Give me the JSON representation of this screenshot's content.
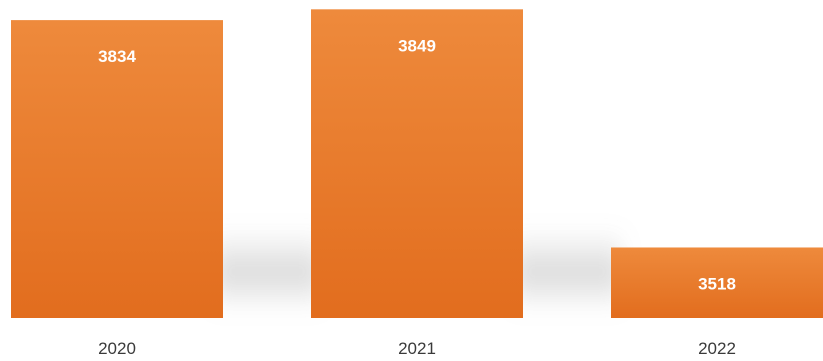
{
  "chart_data": {
    "type": "bar",
    "categories": [
      "2020",
      "2021",
      "2022"
    ],
    "values": [
      3834,
      3849,
      3518
    ],
    "data_labels": [
      "3834",
      "3849",
      "3518"
    ],
    "title": "",
    "xlabel": "",
    "ylabel": "",
    "ylim": [
      3420,
      3855
    ],
    "grid": false,
    "legend": "none",
    "colors": {
      "bar_top": "#ee8a3c",
      "bar_bottom": "#e26d1e",
      "shadow": "#9a9a9a",
      "data_label": "#ffffff",
      "tick_label": "#3a3a3a"
    }
  }
}
